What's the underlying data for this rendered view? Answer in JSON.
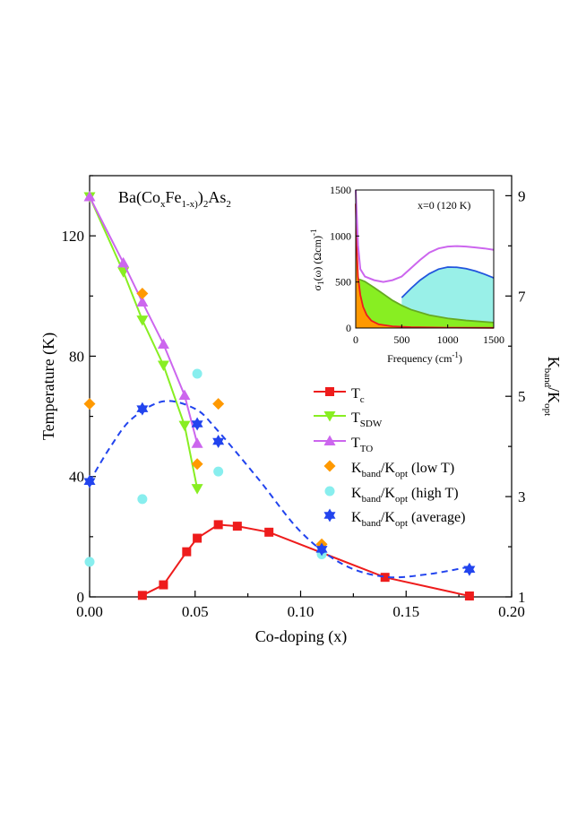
{
  "chart_data": {
    "type": "scatter",
    "title_prefix": "Ba(Co",
    "title_sub1": "x",
    "title_mid": "Fe",
    "title_sub2": "1-x)",
    "title_post": ")",
    "title_sub3": "2",
    "title_post2": "As",
    "title_sub4": "2",
    "xlabel": "Co-doping (x)",
    "ylabel": "Temperature (K)",
    "y2label_main": "K",
    "y2label_sub1": "band",
    "y2label_mid": "/K",
    "y2label_sub2": "opt",
    "xlim": [
      0,
      0.2
    ],
    "ylim": [
      0,
      140
    ],
    "y2lim": [
      1,
      9.4
    ],
    "xticks": [
      "0.00",
      "0.05",
      "0.10",
      "0.15",
      "0.20"
    ],
    "xtick_values": [
      0,
      0.05,
      0.1,
      0.15,
      0.2
    ],
    "yticks": [
      "0",
      "40",
      "80",
      "120"
    ],
    "ytick_values": [
      0,
      40,
      80,
      120
    ],
    "y2ticks": [
      "1",
      "3",
      "5",
      "7",
      "9"
    ],
    "y2tick_values": [
      1,
      3,
      5,
      7,
      9
    ],
    "series": [
      {
        "name": "Tc",
        "legend_main": "T",
        "legend_sub": "c",
        "axis": "left",
        "marker": "square",
        "color": "#ee1c1c",
        "line": "solid",
        "x": [
          0.025,
          0.035,
          0.046,
          0.051,
          0.061,
          0.07,
          0.085,
          0.14,
          0.18
        ],
        "y": [
          0.5,
          4,
          15,
          19.5,
          24,
          23.5,
          21.5,
          6.5,
          0.3
        ]
      },
      {
        "name": "TSDW",
        "legend_main": "T",
        "legend_sub": "SDW",
        "axis": "left",
        "marker": "triangle-down",
        "color": "#88ee22",
        "line": "solid",
        "x": [
          0,
          0.016,
          0.025,
          0.035,
          0.045,
          0.051
        ],
        "y": [
          133,
          108,
          92,
          77,
          57,
          36
        ]
      },
      {
        "name": "TTO",
        "legend_main": "T",
        "legend_sub": "TO",
        "axis": "left",
        "marker": "triangle-up",
        "color": "#cc66ee",
        "line": "solid",
        "x": [
          0,
          0.016,
          0.025,
          0.035,
          0.045,
          0.051
        ],
        "y": [
          133,
          111,
          98,
          84,
          67,
          51
        ]
      },
      {
        "name": "Kband/Kopt (low T)",
        "legend_main": "K",
        "legend_sub": "band",
        "legend_mid": "/K",
        "legend_sub2": "opt",
        "legend_tail": " (low T)",
        "axis": "right",
        "marker": "diamond",
        "color": "#ff9900",
        "line": "none",
        "x": [
          0,
          0.025,
          0.051,
          0.061,
          0.11
        ],
        "y": [
          4.85,
          7.05,
          3.65,
          4.85,
          2.05
        ]
      },
      {
        "name": "Kband/Kopt (high T)",
        "legend_main": "K",
        "legend_sub": "band",
        "legend_mid": "/K",
        "legend_sub2": "opt",
        "legend_tail": " (high T)",
        "axis": "right",
        "marker": "circle",
        "color": "#88eeee",
        "line": "none",
        "x": [
          0,
          0.025,
          0.051,
          0.061,
          0.11
        ],
        "y": [
          1.7,
          2.95,
          5.45,
          3.5,
          1.85
        ]
      },
      {
        "name": "Kband/Kopt (average)",
        "legend_main": "K",
        "legend_sub": "band",
        "legend_mid": "/K",
        "legend_sub2": "opt",
        "legend_tail": " (average)",
        "axis": "right",
        "marker": "star6",
        "color": "#2244ee",
        "line": "dashed",
        "x": [
          0,
          0.025,
          0.051,
          0.061,
          0.11,
          0.18
        ],
        "y": [
          3.3,
          4.75,
          4.45,
          4.1,
          1.95,
          1.55
        ],
        "fit_x": [
          0,
          0.01,
          0.02,
          0.035,
          0.05,
          0.06,
          0.08,
          0.1,
          0.12,
          0.14,
          0.16,
          0.18
        ],
        "fit_y": [
          3.3,
          4.0,
          4.55,
          4.9,
          4.75,
          4.35,
          3.35,
          2.3,
          1.65,
          1.4,
          1.45,
          1.6
        ]
      }
    ],
    "inset": {
      "type": "area",
      "annotation": "x=0 (120 K)",
      "xlabel_main": "Frequency (cm",
      "xlabel_sup": "-1",
      "xlabel_end": ")",
      "ylabel_sigma": "σ",
      "ylabel_sub": "1",
      "ylabel_mid": "(ω) (Ωcm)",
      "ylabel_sup": "-1",
      "xlim": [
        0,
        1500
      ],
      "ylim": [
        0,
        1500
      ],
      "xticks": [
        "0",
        "500",
        "1000",
        "1500"
      ],
      "xtick_values": [
        0,
        500,
        1000,
        1500
      ],
      "yticks": [
        "0",
        "500",
        "1000",
        "1500"
      ],
      "ytick_values": [
        0,
        500,
        1000,
        1500
      ],
      "components": [
        {
          "name": "drude-narrow",
          "color": "#ff9900",
          "edge": "#ee1c1c",
          "x": [
            0,
            10,
            25,
            50,
            80,
            120,
            170,
            250,
            400,
            600,
            1000,
            1500
          ],
          "y": [
            1350,
            900,
            560,
            360,
            230,
            140,
            80,
            40,
            18,
            9,
            4,
            2
          ]
        },
        {
          "name": "drude-broad",
          "color": "#88ee22",
          "edge": "#66aa22",
          "x": [
            0,
            50,
            100,
            200,
            300,
            400,
            500,
            600,
            800,
            1000,
            1200,
            1500
          ],
          "y": [
            530,
            525,
            505,
            440,
            370,
            300,
            245,
            200,
            140,
            105,
            82,
            60
          ]
        },
        {
          "name": "lorentz",
          "color": "#99f0e8",
          "edge": "#2255dd",
          "x": [
            500,
            600,
            700,
            800,
            900,
            1000,
            1100,
            1200,
            1300,
            1400,
            1500
          ],
          "y": [
            330,
            430,
            520,
            590,
            640,
            662,
            660,
            645,
            620,
            585,
            545
          ]
        },
        {
          "name": "fit-total",
          "color": "none",
          "edge": "#cc66ee",
          "x": [
            0,
            25,
            50,
            100,
            200,
            300,
            400,
            500,
            600,
            700,
            800,
            900,
            1000,
            1100,
            1200,
            1300,
            1400,
            1500
          ],
          "y": [
            1500,
            900,
            640,
            560,
            520,
            500,
            520,
            560,
            650,
            740,
            820,
            865,
            885,
            890,
            885,
            875,
            865,
            850
          ]
        }
      ]
    }
  }
}
